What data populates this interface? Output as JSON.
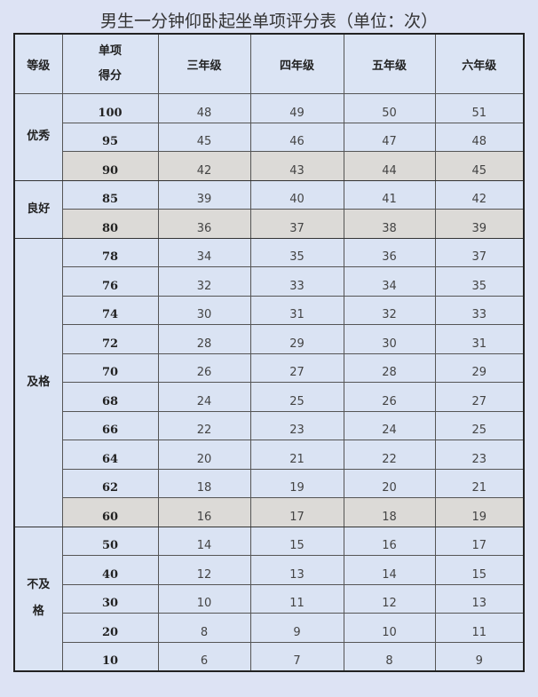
{
  "title": "男生一分钟仰卧起坐单项评分表（单位：次）",
  "headers": {
    "level": "等级",
    "score_line1": "单项",
    "score_line2": "得分",
    "grades": [
      "三年级",
      "四年级",
      "五年级",
      "六年级"
    ]
  },
  "colors": {
    "background": "#dde3f4",
    "cell": "#dae3f3",
    "highlight_row": "#dcdad7"
  },
  "groups": [
    {
      "level": "优秀",
      "rows": [
        {
          "score": "100",
          "values": [
            "48",
            "49",
            "50",
            "51"
          ]
        },
        {
          "score": "95",
          "values": [
            "45",
            "46",
            "47",
            "48"
          ]
        },
        {
          "score": "90",
          "values": [
            "42",
            "43",
            "44",
            "45"
          ],
          "highlight": true
        }
      ]
    },
    {
      "level": "良好",
      "rows": [
        {
          "score": "85",
          "values": [
            "39",
            "40",
            "41",
            "42"
          ]
        },
        {
          "score": "80",
          "values": [
            "36",
            "37",
            "38",
            "39"
          ],
          "highlight": true
        }
      ]
    },
    {
      "level": "及格",
      "rows": [
        {
          "score": "78",
          "values": [
            "34",
            "35",
            "36",
            "37"
          ]
        },
        {
          "score": "76",
          "values": [
            "32",
            "33",
            "34",
            "35"
          ]
        },
        {
          "score": "74",
          "values": [
            "30",
            "31",
            "32",
            "33"
          ]
        },
        {
          "score": "72",
          "values": [
            "28",
            "29",
            "30",
            "31"
          ]
        },
        {
          "score": "70",
          "values": [
            "26",
            "27",
            "28",
            "29"
          ]
        },
        {
          "score": "68",
          "values": [
            "24",
            "25",
            "26",
            "27"
          ]
        },
        {
          "score": "66",
          "values": [
            "22",
            "23",
            "24",
            "25"
          ]
        },
        {
          "score": "64",
          "values": [
            "20",
            "21",
            "22",
            "23"
          ]
        },
        {
          "score": "62",
          "values": [
            "18",
            "19",
            "20",
            "21"
          ]
        },
        {
          "score": "60",
          "values": [
            "16",
            "17",
            "18",
            "19"
          ],
          "highlight": true
        }
      ]
    },
    {
      "level": "不及格",
      "level_lines": [
        "不及",
        "格"
      ],
      "rows": [
        {
          "score": "50",
          "values": [
            "14",
            "15",
            "16",
            "17"
          ]
        },
        {
          "score": "40",
          "values": [
            "12",
            "13",
            "14",
            "15"
          ]
        },
        {
          "score": "30",
          "values": [
            "10",
            "11",
            "12",
            "13"
          ]
        },
        {
          "score": "20",
          "values": [
            "8",
            "9",
            "10",
            "11"
          ]
        },
        {
          "score": "10",
          "values": [
            "6",
            "7",
            "8",
            "9"
          ]
        }
      ]
    }
  ]
}
